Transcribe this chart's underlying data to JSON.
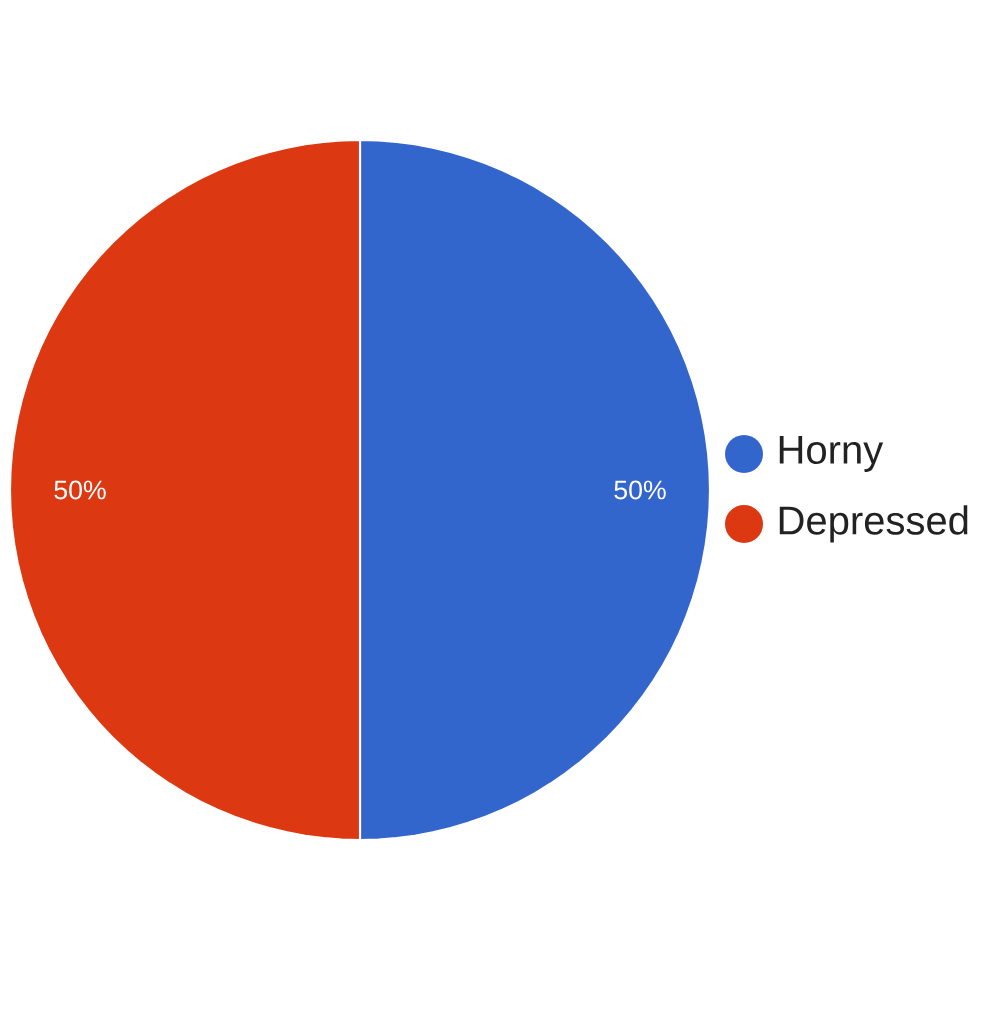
{
  "chart_data": {
    "type": "pie",
    "categories": [
      "Horny",
      "Depressed"
    ],
    "values": [
      50,
      50
    ],
    "colors": [
      "#3366cc",
      "#dc3912"
    ],
    "value_labels": [
      "50%",
      "50%"
    ],
    "legend": "right"
  }
}
